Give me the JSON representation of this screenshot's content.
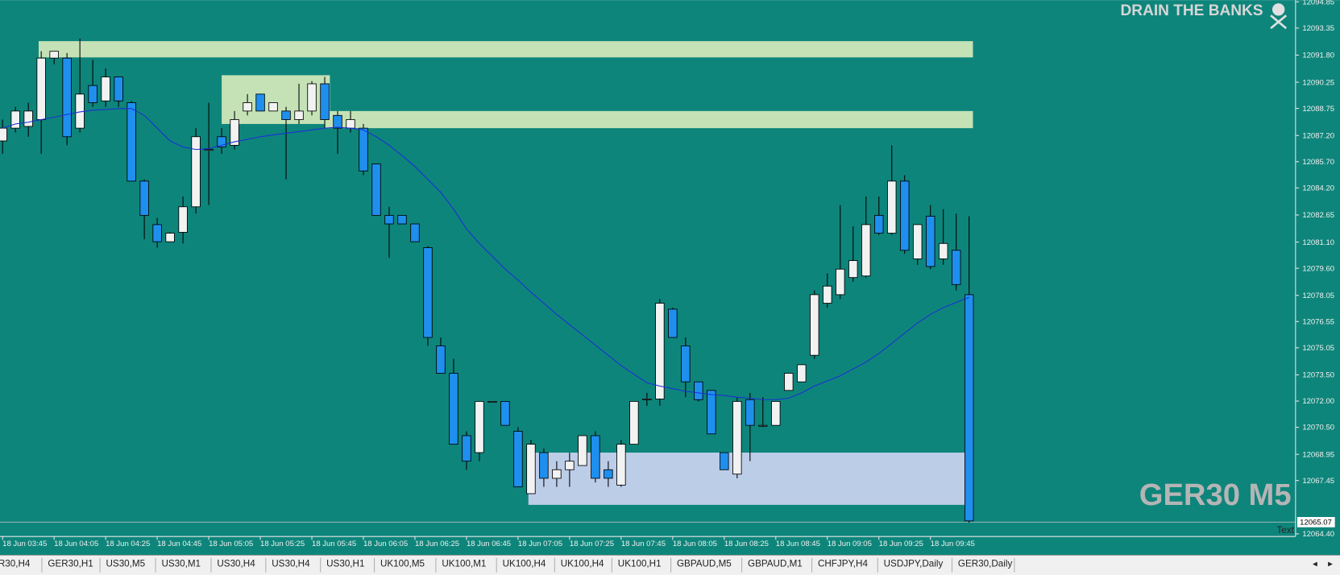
{
  "chart_data": {
    "type": "candlestick",
    "title": "GER30 M5",
    "brand": "DRAIN THE BANKS",
    "corner_text": "Text",
    "background": "#0e857b",
    "bull_color": "#f2f2f2",
    "bear_color": "#1e8fee",
    "categories": [
      "18 Jun 03:45",
      null,
      null,
      null,
      "18 Jun 04:05",
      null,
      null,
      null,
      "18 Jun 04:25",
      null,
      null,
      null,
      "18 Jun 04:45",
      null,
      null,
      null,
      "18 Jun 05:05",
      null,
      null,
      null,
      "18 Jun 05:25",
      null,
      null,
      null,
      "18 Jun 05:45",
      null,
      null,
      null,
      "18 Jun 06:05",
      null,
      null,
      null,
      "18 Jun 06:25",
      null,
      null,
      null,
      "18 Jun 06:45",
      null,
      null,
      null,
      "18 Jun 07:05",
      null,
      null,
      null,
      "18 Jun 07:25",
      null,
      null,
      null,
      "18 Jun 07:45",
      null,
      null,
      null,
      "18 Jun 08:05",
      null,
      null,
      null,
      "18 Jun 08:25",
      null,
      null,
      null,
      "18 Jun 08:45",
      null,
      null,
      null,
      "18 Jun 09:05",
      null,
      null,
      null,
      "18 Jun 09:25",
      null,
      null,
      null,
      "18 Jun 09:45",
      null,
      null,
      null
    ],
    "open": [
      12086.89,
      12087.62,
      12087.72,
      12088.11,
      12091.63,
      12091.63,
      12087.62,
      12090.06,
      12089.18,
      12090.55,
      12089.08,
      12084.59,
      12082.1,
      12081.12,
      12081.66,
      12083.12,
      12086.4,
      12087.13,
      12086.64,
      12088.6,
      12089.57,
      12088.6,
      12088.6,
      12088.11,
      12088.6,
      12090.16,
      12088.35,
      12087.62,
      12087.62,
      12085.57,
      12082.63,
      12082.63,
      12082.14,
      12080.78,
      12075.16,
      12073.59,
      12070.02,
      12069.05,
      12071.98,
      12071.98,
      12070.27,
      12066.7,
      12069.05,
      12067.58,
      12068.07,
      12068.31,
      12070.02,
      12068.07,
      12067.19,
      12069.53,
      12072.12,
      12072.12,
      12077.26,
      12075.16,
      12073.1,
      12072.61,
      12069.05,
      12067.82,
      12072.08,
      12070.61,
      12070.61,
      12072.61,
      12073.1,
      12074.62,
      12077.6,
      12078.09,
      12079.07,
      12079.16,
      12082.63,
      12081.61,
      12084.59,
      12080.14,
      12082.58,
      12080.14,
      12080.63,
      12078.09
    ],
    "high": [
      12088.11,
      12088.84,
      12089.08,
      12092.02,
      12092.02,
      12091.92,
      12092.75,
      12091.53,
      12091.04,
      12090.55,
      12089.18,
      12084.69,
      12082.49,
      12081.66,
      12083.71,
      12087.62,
      12089.08,
      12087.62,
      12088.6,
      12089.57,
      12089.57,
      12089.08,
      12088.84,
      12090.16,
      12090.31,
      12090.55,
      12088.6,
      12088.6,
      12087.86,
      12085.57,
      12083.12,
      12082.63,
      12082.14,
      12080.87,
      12075.64,
      12074.42,
      12070.27,
      12071.98,
      12071.98,
      12071.98,
      12070.51,
      12069.78,
      12069.29,
      12068.56,
      12069.05,
      12070.02,
      12070.27,
      12068.56,
      12069.78,
      12071.98,
      12072.47,
      12077.84,
      12077.35,
      12075.64,
      12073.1,
      12072.61,
      12069.05,
      12072.22,
      12072.47,
      12072.22,
      12071.98,
      12073.59,
      12074.08,
      12078.33,
      12079.31,
      12083.22,
      12082.0,
      12083.71,
      12083.71,
      12086.64,
      12084.93,
      12082.1,
      12083.22,
      12082.98,
      12082.73,
      12082.58
    ],
    "low": [
      12086.15,
      12087.37,
      12087.13,
      12086.15,
      12091.28,
      12086.64,
      12087.37,
      12088.84,
      12088.84,
      12088.84,
      12084.59,
      12081.26,
      12080.78,
      12081.12,
      12081.02,
      12082.73,
      12083.22,
      12086.15,
      12086.4,
      12088.35,
      12088.6,
      12088.6,
      12084.69,
      12087.86,
      12088.35,
      12087.62,
      12086.15,
      12087.37,
      12084.93,
      12082.63,
      12080.19,
      12082.14,
      12081.12,
      12075.16,
      12073.59,
      12069.53,
      12068.07,
      12068.56,
      12071.98,
      12070.61,
      12067.09,
      12066.7,
      12067.09,
      12067.09,
      12067.09,
      12068.31,
      12067.34,
      12067.09,
      12067.09,
      12069.53,
      12071.73,
      12071.73,
      12075.64,
      12072.22,
      12071.98,
      12070.12,
      12068.07,
      12067.58,
      12068.56,
      12070.51,
      12070.61,
      12072.61,
      12073.1,
      12074.42,
      12077.35,
      12077.84,
      12078.82,
      12079.07,
      12081.51,
      12081.51,
      12080.43,
      12079.8,
      12079.55,
      12079.8,
      12078.33,
      12065.04
    ],
    "close": [
      12087.62,
      12088.6,
      12088.6,
      12091.63,
      12092.02,
      12087.13,
      12089.57,
      12089.08,
      12090.55,
      12089.18,
      12084.59,
      12082.63,
      12081.12,
      12081.61,
      12083.12,
      12087.13,
      12086.4,
      12086.54,
      12088.11,
      12089.08,
      12088.6,
      12089.08,
      12088.11,
      12088.6,
      12090.16,
      12088.11,
      12087.62,
      12088.11,
      12085.17,
      12082.63,
      12082.14,
      12082.14,
      12081.12,
      12075.64,
      12073.59,
      12069.53,
      12068.56,
      12071.98,
      12071.98,
      12070.61,
      12067.09,
      12069.53,
      12067.58,
      12068.07,
      12068.56,
      12070.02,
      12067.58,
      12067.58,
      12069.53,
      12071.98,
      12072.12,
      12077.6,
      12075.64,
      12073.1,
      12072.08,
      12070.12,
      12068.07,
      12071.98,
      12070.61,
      12070.61,
      12071.98,
      12073.59,
      12074.08,
      12078.09,
      12078.58,
      12079.55,
      12080.04,
      12082.1,
      12081.61,
      12084.59,
      12080.63,
      12082.1,
      12079.7,
      12081.02,
      12078.67,
      12065.14
    ],
    "ma": {
      "color": "#1c2fd6",
      "values": [
        12087.62,
        12087.86,
        12087.96,
        12088.11,
        12088.25,
        12088.4,
        12088.55,
        12088.65,
        12088.69,
        12088.74,
        12088.74,
        12088.35,
        12087.62,
        12086.89,
        12086.54,
        12086.4,
        12086.45,
        12086.64,
        12086.84,
        12086.98,
        12087.13,
        12087.23,
        12087.33,
        12087.42,
        12087.52,
        12087.62,
        12087.67,
        12087.62,
        12087.52,
        12087.13,
        12086.64,
        12086.05,
        12085.42,
        12084.69,
        12083.95,
        12082.98,
        12081.85,
        12081.02,
        12080.29,
        12079.55,
        12078.92,
        12078.23,
        12077.6,
        12076.96,
        12076.38,
        12075.79,
        12075.2,
        12074.62,
        12074.03,
        12073.54,
        12073.05,
        12072.86,
        12072.71,
        12072.56,
        12072.47,
        12072.37,
        12072.32,
        12072.22,
        12072.17,
        12072.08,
        12072.08,
        12072.17,
        12072.47,
        12072.86,
        12073.15,
        12073.44,
        12073.84,
        12074.23,
        12074.72,
        12075.3,
        12075.89,
        12076.47,
        12076.96,
        12077.35,
        12077.65,
        12077.94
      ]
    },
    "zones": [
      {
        "top": 12092.6,
        "bottom": 12091.67,
        "color": "#c4e2b6"
      },
      {
        "top": 12090.65,
        "bottom": 12087.86,
        "color": "#c4e2b6"
      },
      {
        "top": 12088.6,
        "bottom": 12087.62,
        "color": "#c4e2b6"
      },
      {
        "top": 12069.05,
        "bottom": 12066.06,
        "color": "#bccde8"
      }
    ],
    "current_price": 12065.07,
    "ylim": [
      12064.25,
      12094.95
    ],
    "yticks": [
      12094.85,
      12093.35,
      {
        "value": 12091.8,
        "label": "12091.80"
      },
      12090.25,
      12088.75,
      {
        "value": 12087.2,
        "label": "12087.20"
      },
      {
        "value": 12085.7,
        "label": "12085.70"
      },
      {
        "value": 12084.2,
        "label": "12084.20"
      },
      12082.65,
      {
        "value": 12081.1,
        "label": "12081.10"
      },
      {
        "value": 12079.6,
        "label": "12079.60"
      },
      12078.05,
      12076.55,
      12075.05,
      {
        "value": 12073.5,
        "label": "12073.50"
      },
      {
        "value": 12072,
        "label": "12072.00"
      },
      {
        "value": 12070.5,
        "label": "12070.50"
      },
      12068.95,
      12067.45,
      {
        "value": 12064.4,
        "label": "12064.40"
      }
    ]
  },
  "tabs": [
    "R30,H4",
    "GER30,H1",
    "US30,M5",
    "US30,M1",
    "US30,H4",
    "US30,H4",
    "US30,H1",
    "UK100,M5",
    "UK100,M1",
    "UK100,H4",
    "UK100,H4",
    "UK100,H1",
    "GBPAUD,M5",
    "GBPAUD,M1",
    "CHFJPY,H4",
    "USDJPY,Daily",
    "GER30,Daily"
  ]
}
